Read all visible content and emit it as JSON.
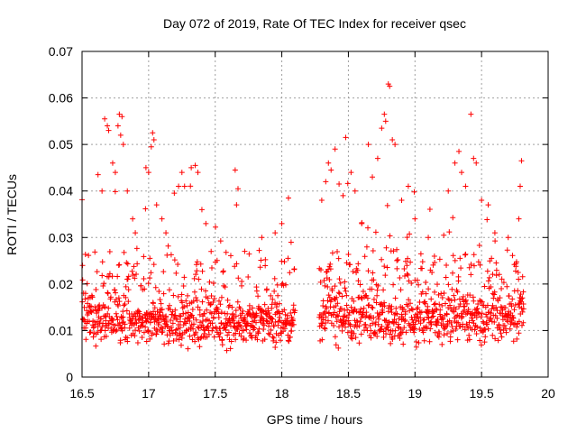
{
  "chart_data": {
    "type": "scatter",
    "title": "Day 072 of 2019, Rate Of TEC Index for receiver qsec",
    "xlabel": "GPS time / hours",
    "ylabel": "ROTI / TECUs",
    "xlim": [
      16.5,
      20
    ],
    "ylim": [
      0,
      0.07
    ],
    "x_ticks": [
      16.5,
      17,
      17.5,
      18,
      18.5,
      19,
      19.5,
      20
    ],
    "x_tick_labels": [
      "16.5",
      "17",
      "17.5",
      "18",
      "18.5",
      "19",
      "19.5",
      "20"
    ],
    "y_ticks": [
      0,
      0.01,
      0.02,
      0.03,
      0.04,
      0.05,
      0.06,
      0.07
    ],
    "y_tick_labels": [
      "0",
      "0.01",
      "0.02",
      "0.03",
      "0.04",
      "0.05",
      "0.06",
      "0.07"
    ],
    "grid": true,
    "marker": "+",
    "color": "#ff0000",
    "series": [
      {
        "name": "ROTI",
        "segments": [
          {
            "x_start": 16.5,
            "x_end": 18.1,
            "baseline": 0.0115,
            "spread": 0.0065
          },
          {
            "x_start": 18.28,
            "x_end": 19.82,
            "baseline": 0.0125,
            "spread": 0.007
          }
        ],
        "points": [
          [
            16.62,
            0.0435
          ],
          [
            16.65,
            0.04
          ],
          [
            16.67,
            0.0555
          ],
          [
            16.69,
            0.054
          ],
          [
            16.7,
            0.053
          ],
          [
            16.73,
            0.046
          ],
          [
            16.75,
            0.044
          ],
          [
            16.77,
            0.054
          ],
          [
            16.78,
            0.0565
          ],
          [
            16.8,
            0.056
          ],
          [
            16.79,
            0.052
          ],
          [
            16.81,
            0.05
          ],
          [
            16.84,
            0.04
          ],
          [
            16.88,
            0.034
          ],
          [
            16.9,
            0.031
          ],
          [
            16.98,
            0.045
          ],
          [
            17.0,
            0.044
          ],
          [
            17.03,
            0.0525
          ],
          [
            17.04,
            0.051
          ],
          [
            17.02,
            0.0495
          ],
          [
            17.06,
            0.037
          ],
          [
            17.1,
            0.034
          ],
          [
            17.13,
            0.031
          ],
          [
            17.25,
            0.044
          ],
          [
            17.27,
            0.041
          ],
          [
            17.32,
            0.045
          ],
          [
            17.35,
            0.0455
          ],
          [
            17.37,
            0.044
          ],
          [
            17.4,
            0.036
          ],
          [
            17.43,
            0.033
          ],
          [
            17.65,
            0.0445
          ],
          [
            17.66,
            0.037
          ],
          [
            17.85,
            0.03
          ],
          [
            17.95,
            0.031
          ],
          [
            18.0,
            0.033
          ],
          [
            18.05,
            0.0385
          ],
          [
            18.07,
            0.029
          ],
          [
            18.3,
            0.038
          ],
          [
            18.33,
            0.042
          ],
          [
            18.35,
            0.046
          ],
          [
            18.37,
            0.0445
          ],
          [
            18.4,
            0.049
          ],
          [
            18.43,
            0.0415
          ],
          [
            18.46,
            0.039
          ],
          [
            18.48,
            0.0515
          ],
          [
            18.52,
            0.044
          ],
          [
            18.55,
            0.04
          ],
          [
            18.6,
            0.033
          ],
          [
            18.65,
            0.05
          ],
          [
            18.68,
            0.043
          ],
          [
            18.72,
            0.047
          ],
          [
            18.75,
            0.0535
          ],
          [
            18.77,
            0.0565
          ],
          [
            18.8,
            0.063
          ],
          [
            18.81,
            0.0625
          ],
          [
            18.78,
            0.055
          ],
          [
            18.83,
            0.051
          ],
          [
            18.85,
            0.05
          ],
          [
            18.9,
            0.038
          ],
          [
            18.95,
            0.041
          ],
          [
            19.0,
            0.034
          ],
          [
            19.1,
            0.03
          ],
          [
            19.25,
            0.04
          ],
          [
            19.3,
            0.046
          ],
          [
            19.33,
            0.0485
          ],
          [
            19.35,
            0.044
          ],
          [
            19.38,
            0.041
          ],
          [
            19.42,
            0.0565
          ],
          [
            19.44,
            0.047
          ],
          [
            19.46,
            0.046
          ],
          [
            19.5,
            0.038
          ],
          [
            19.55,
            0.037
          ],
          [
            19.6,
            0.031
          ],
          [
            19.7,
            0.03
          ],
          [
            19.78,
            0.034
          ],
          [
            19.8,
            0.0465
          ],
          [
            19.79,
            0.041
          ]
        ]
      }
    ]
  }
}
